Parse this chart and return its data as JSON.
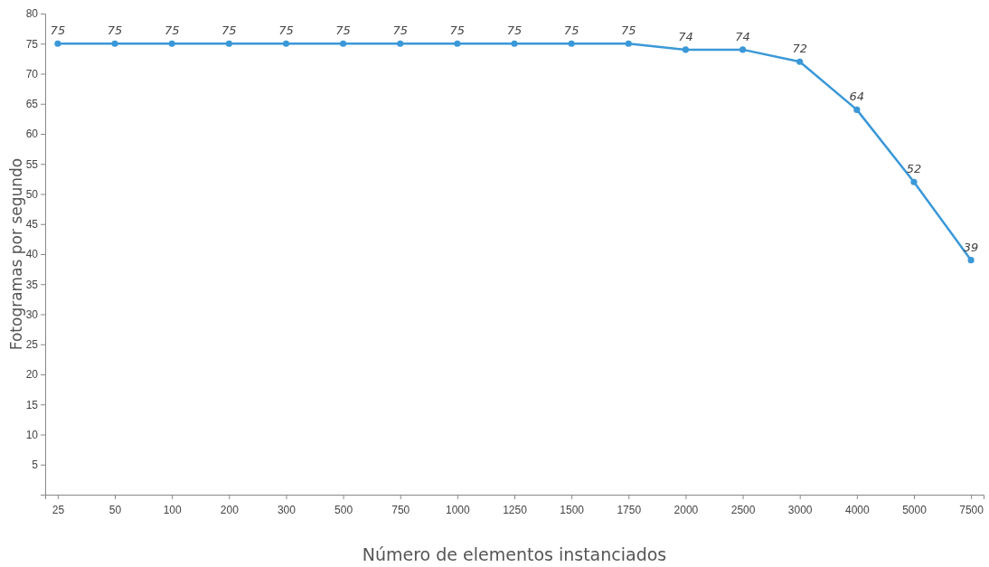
{
  "chart_data": {
    "type": "line",
    "xlabel": "Número de elementos instanciados",
    "ylabel": "Fotogramas por segundo",
    "categories": [
      "25",
      "50",
      "100",
      "200",
      "300",
      "500",
      "750",
      "1000",
      "1250",
      "1500",
      "1750",
      "2000",
      "2500",
      "3000",
      "4000",
      "5000",
      "7500"
    ],
    "series": [
      {
        "color": "#3a98d8",
        "values": [
          75,
          75,
          75,
          75,
          75,
          75,
          75,
          75,
          75,
          75,
          75,
          74,
          74,
          72,
          64,
          52,
          39
        ]
      }
    ],
    "ylim": [
      0,
      80
    ],
    "yticks": [
      5,
      10,
      15,
      20,
      25,
      30,
      35,
      40,
      45,
      50,
      55,
      60,
      65,
      70,
      75,
      80
    ],
    "data_labels": true,
    "marker": "circle",
    "line_style": "solid",
    "grid": false
  }
}
